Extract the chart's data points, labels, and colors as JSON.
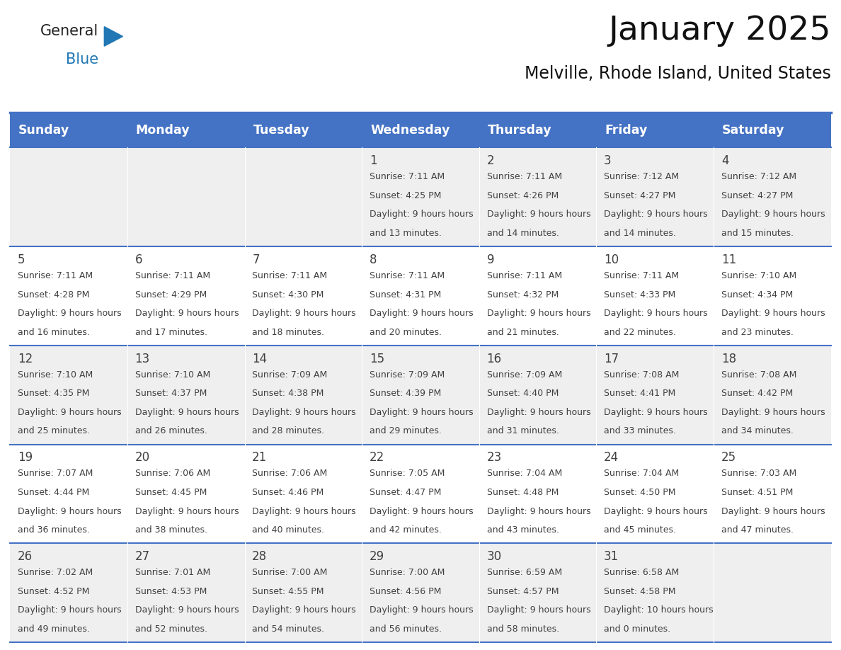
{
  "title": "January 2025",
  "subtitle": "Melville, Rhode Island, United States",
  "days_of_week": [
    "Sunday",
    "Monday",
    "Tuesday",
    "Wednesday",
    "Thursday",
    "Friday",
    "Saturday"
  ],
  "header_bg": "#4472C4",
  "header_text_color": "#FFFFFF",
  "cell_bg_odd": "#EFEFEF",
  "cell_bg_even": "#FFFFFF",
  "line_color": "#4472C4",
  "text_color": "#404040",
  "calendar_data": [
    [
      null,
      null,
      null,
      {
        "day": 1,
        "sunrise": "7:11 AM",
        "sunset": "4:25 PM",
        "daylight": "9 hours and 13 minutes."
      },
      {
        "day": 2,
        "sunrise": "7:11 AM",
        "sunset": "4:26 PM",
        "daylight": "9 hours and 14 minutes."
      },
      {
        "day": 3,
        "sunrise": "7:12 AM",
        "sunset": "4:27 PM",
        "daylight": "9 hours and 14 minutes."
      },
      {
        "day": 4,
        "sunrise": "7:12 AM",
        "sunset": "4:27 PM",
        "daylight": "9 hours and 15 minutes."
      }
    ],
    [
      {
        "day": 5,
        "sunrise": "7:11 AM",
        "sunset": "4:28 PM",
        "daylight": "9 hours and 16 minutes."
      },
      {
        "day": 6,
        "sunrise": "7:11 AM",
        "sunset": "4:29 PM",
        "daylight": "9 hours and 17 minutes."
      },
      {
        "day": 7,
        "sunrise": "7:11 AM",
        "sunset": "4:30 PM",
        "daylight": "9 hours and 18 minutes."
      },
      {
        "day": 8,
        "sunrise": "7:11 AM",
        "sunset": "4:31 PM",
        "daylight": "9 hours and 20 minutes."
      },
      {
        "day": 9,
        "sunrise": "7:11 AM",
        "sunset": "4:32 PM",
        "daylight": "9 hours and 21 minutes."
      },
      {
        "day": 10,
        "sunrise": "7:11 AM",
        "sunset": "4:33 PM",
        "daylight": "9 hours and 22 minutes."
      },
      {
        "day": 11,
        "sunrise": "7:10 AM",
        "sunset": "4:34 PM",
        "daylight": "9 hours and 23 minutes."
      }
    ],
    [
      {
        "day": 12,
        "sunrise": "7:10 AM",
        "sunset": "4:35 PM",
        "daylight": "9 hours and 25 minutes."
      },
      {
        "day": 13,
        "sunrise": "7:10 AM",
        "sunset": "4:37 PM",
        "daylight": "9 hours and 26 minutes."
      },
      {
        "day": 14,
        "sunrise": "7:09 AM",
        "sunset": "4:38 PM",
        "daylight": "9 hours and 28 minutes."
      },
      {
        "day": 15,
        "sunrise": "7:09 AM",
        "sunset": "4:39 PM",
        "daylight": "9 hours and 29 minutes."
      },
      {
        "day": 16,
        "sunrise": "7:09 AM",
        "sunset": "4:40 PM",
        "daylight": "9 hours and 31 minutes."
      },
      {
        "day": 17,
        "sunrise": "7:08 AM",
        "sunset": "4:41 PM",
        "daylight": "9 hours and 33 minutes."
      },
      {
        "day": 18,
        "sunrise": "7:08 AM",
        "sunset": "4:42 PM",
        "daylight": "9 hours and 34 minutes."
      }
    ],
    [
      {
        "day": 19,
        "sunrise": "7:07 AM",
        "sunset": "4:44 PM",
        "daylight": "9 hours and 36 minutes."
      },
      {
        "day": 20,
        "sunrise": "7:06 AM",
        "sunset": "4:45 PM",
        "daylight": "9 hours and 38 minutes."
      },
      {
        "day": 21,
        "sunrise": "7:06 AM",
        "sunset": "4:46 PM",
        "daylight": "9 hours and 40 minutes."
      },
      {
        "day": 22,
        "sunrise": "7:05 AM",
        "sunset": "4:47 PM",
        "daylight": "9 hours and 42 minutes."
      },
      {
        "day": 23,
        "sunrise": "7:04 AM",
        "sunset": "4:48 PM",
        "daylight": "9 hours and 43 minutes."
      },
      {
        "day": 24,
        "sunrise": "7:04 AM",
        "sunset": "4:50 PM",
        "daylight": "9 hours and 45 minutes."
      },
      {
        "day": 25,
        "sunrise": "7:03 AM",
        "sunset": "4:51 PM",
        "daylight": "9 hours and 47 minutes."
      }
    ],
    [
      {
        "day": 26,
        "sunrise": "7:02 AM",
        "sunset": "4:52 PM",
        "daylight": "9 hours and 49 minutes."
      },
      {
        "day": 27,
        "sunrise": "7:01 AM",
        "sunset": "4:53 PM",
        "daylight": "9 hours and 52 minutes."
      },
      {
        "day": 28,
        "sunrise": "7:00 AM",
        "sunset": "4:55 PM",
        "daylight": "9 hours and 54 minutes."
      },
      {
        "day": 29,
        "sunrise": "7:00 AM",
        "sunset": "4:56 PM",
        "daylight": "9 hours and 56 minutes."
      },
      {
        "day": 30,
        "sunrise": "6:59 AM",
        "sunset": "4:57 PM",
        "daylight": "9 hours and 58 minutes."
      },
      {
        "day": 31,
        "sunrise": "6:58 AM",
        "sunset": "4:58 PM",
        "daylight": "10 hours and 0 minutes."
      },
      null
    ]
  ],
  "logo_text1": "General",
  "logo_text2": "Blue",
  "logo_color1": "#222222",
  "logo_color2": "#2077B4",
  "triangle_color": "#2077B4",
  "fig_width": 11.88,
  "fig_height": 9.18,
  "dpi": 100
}
